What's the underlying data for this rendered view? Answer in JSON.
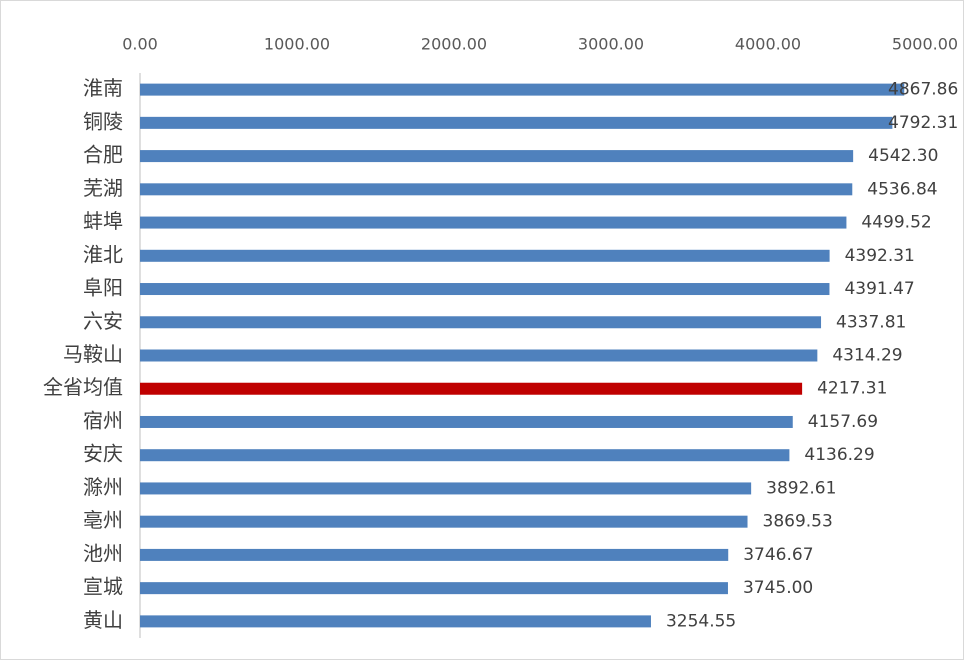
{
  "chart_data": {
    "type": "bar",
    "orientation": "horizontal",
    "categories": [
      "淮南",
      "铜陵",
      "合肥",
      "芜湖",
      "蚌埠",
      "淮北",
      "阜阳",
      "六安",
      "马鞍山",
      "全省均值",
      "宿州",
      "安庆",
      "滁州",
      "亳州",
      "池州",
      "宣城",
      "黄山"
    ],
    "values": [
      4867.86,
      4792.31,
      4542.3,
      4536.84,
      4499.52,
      4392.31,
      4391.47,
      4337.81,
      4314.29,
      4217.31,
      4157.69,
      4136.29,
      3892.61,
      3869.53,
      3746.67,
      3745.0,
      3254.55
    ],
    "value_labels": [
      "4867.86",
      "4792.31",
      "4542.30",
      "4536.84",
      "4499.52",
      "4392.31",
      "4391.47",
      "4337.81",
      "4314.29",
      "4217.31",
      "4157.69",
      "4136.29",
      "3892.61",
      "3869.53",
      "3746.67",
      "3745.00",
      "3254.55"
    ],
    "colors": [
      "#4f81bd",
      "#4f81bd",
      "#4f81bd",
      "#4f81bd",
      "#4f81bd",
      "#4f81bd",
      "#4f81bd",
      "#4f81bd",
      "#4f81bd",
      "#c00000",
      "#4f81bd",
      "#4f81bd",
      "#4f81bd",
      "#4f81bd",
      "#4f81bd",
      "#4f81bd",
      "#4f81bd"
    ],
    "xlim": [
      0,
      5000
    ],
    "xticks": [
      {
        "value": 0,
        "label": "0.00"
      },
      {
        "value": 1000,
        "label": "1000.00"
      },
      {
        "value": 2000,
        "label": "2000.00"
      },
      {
        "value": 3000,
        "label": "3000.00"
      },
      {
        "value": 4000,
        "label": "4000.00"
      },
      {
        "value": 5000,
        "label": "5000.00"
      }
    ]
  }
}
